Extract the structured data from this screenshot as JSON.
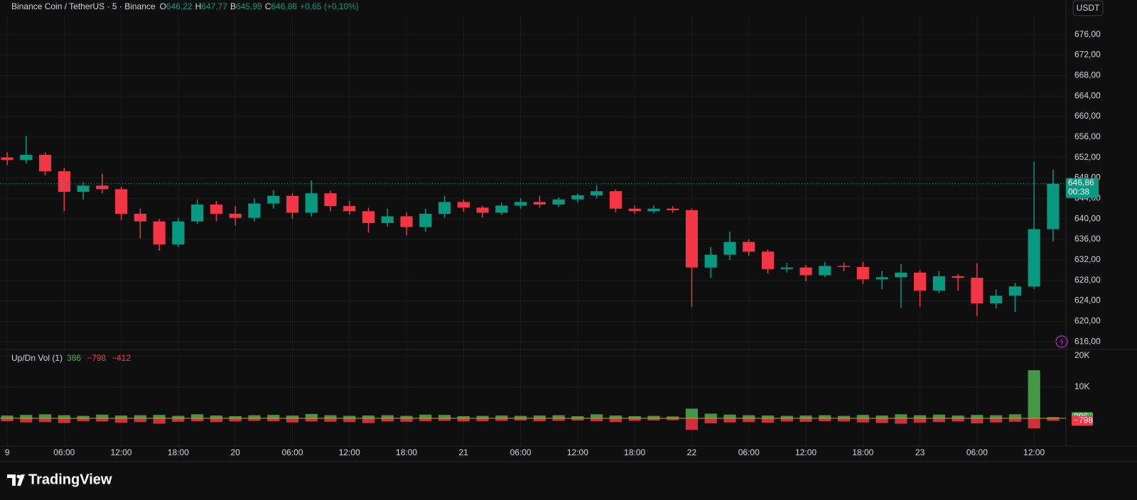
{
  "header": {
    "symbol": "Binance Coin / TetherUS · 5 · Binance",
    "ohlc": [
      {
        "key": "O",
        "value": "646,22"
      },
      {
        "key": "H",
        "value": "647,77"
      },
      {
        "key": "B",
        "value": "645,99"
      },
      {
        "key": "C",
        "value": "646,86"
      }
    ],
    "change": "+0,65 (+0,10%)",
    "currency": "USDT"
  },
  "footer": {
    "brand": "TradingView"
  },
  "chart_data": [
    {
      "type": "candlestick",
      "up_color": "#089981",
      "down_color": "#f23645",
      "grid": true,
      "x": [
        0,
        2,
        4,
        6,
        8,
        10,
        12,
        14,
        16,
        18,
        20,
        22,
        24,
        26,
        28,
        30,
        32,
        34,
        36,
        38,
        40,
        42,
        44,
        46,
        48,
        50,
        52,
        54,
        56,
        58,
        60,
        62,
        64,
        66,
        68,
        70,
        72,
        74,
        76,
        78,
        80,
        82,
        84,
        86,
        88,
        90,
        92,
        94,
        96,
        98,
        100,
        102,
        104,
        106,
        108,
        110
      ],
      "open": [
        652,
        651.5,
        652.5,
        649.3,
        645.3,
        646.5,
        645.8,
        641,
        639.5,
        635,
        639.5,
        642.8,
        641,
        640.2,
        643,
        644.5,
        641.2,
        645,
        642.5,
        641.5,
        639.2,
        640.5,
        638.4,
        641,
        643.3,
        642.2,
        641.2,
        642.6,
        643.3,
        642.8,
        643.8,
        644.6,
        645.4,
        642,
        641.5,
        642,
        641.7,
        630.5,
        633,
        635.5,
        633.6,
        630.2,
        630.5,
        629,
        630.8,
        630.6,
        628.2,
        628.6,
        629.5,
        626,
        628.8,
        628.5,
        623.5,
        625,
        626.8,
        638
      ],
      "high": [
        653,
        656.2,
        653,
        650,
        647.2,
        648.8,
        646.3,
        642,
        640,
        640.2,
        643.8,
        643.5,
        642.5,
        644,
        645.6,
        645,
        647.5,
        645.5,
        643.5,
        642.2,
        642,
        641.3,
        642,
        644.5,
        643.8,
        642.6,
        643.2,
        644,
        644.5,
        644.2,
        645,
        646.6,
        645.8,
        642.6,
        642.6,
        642.5,
        642,
        634.5,
        637.5,
        636,
        634,
        631.4,
        631,
        631.6,
        631.5,
        631.6,
        629.8,
        631.2,
        630,
        629.8,
        629.2,
        631.3,
        626.2,
        627.5,
        651.1,
        649.6
      ],
      "low": [
        650.5,
        650.8,
        648.5,
        641.5,
        643.8,
        645,
        639.8,
        636.2,
        633.8,
        634.5,
        639,
        639.5,
        638.7,
        639.5,
        642,
        640,
        640.5,
        641.5,
        640.8,
        637.3,
        638.5,
        636.8,
        637.5,
        640.2,
        641.4,
        640.3,
        640.8,
        642,
        642.2,
        642.3,
        643.2,
        644,
        641.3,
        640.9,
        641.1,
        641.2,
        622.8,
        628.5,
        632,
        632.8,
        629.3,
        629.5,
        627.8,
        628.6,
        629.8,
        627.3,
        626.3,
        622.7,
        622.8,
        625.5,
        626,
        621,
        622.5,
        621.8,
        626.3,
        635.6
      ],
      "close": [
        651.5,
        652.5,
        649.3,
        645.3,
        646.5,
        645.8,
        641,
        639.5,
        635,
        639.5,
        642.8,
        641,
        640.2,
        643,
        644.5,
        641.2,
        645,
        642.5,
        641.5,
        639.2,
        640.5,
        638.4,
        641,
        643.3,
        642.2,
        641.2,
        642.6,
        643.3,
        642.8,
        643.8,
        644.6,
        645.4,
        642,
        641.5,
        642,
        641.7,
        630.5,
        633,
        635.5,
        633.6,
        630.2,
        630.5,
        629,
        630.8,
        630.6,
        628.2,
        628.6,
        629.5,
        626,
        628.8,
        628.5,
        623.5,
        625,
        626.8,
        638,
        646.86
      ],
      "last_price": {
        "value": 646.86,
        "label": "646,86"
      },
      "countdown": "00:38",
      "xlim": [
        -0.75,
        111.35
      ],
      "ylim": [
        614.5,
        679.7
      ],
      "xticks": [
        {
          "value": 0,
          "label": "9"
        },
        {
          "value": 6,
          "label": "06:00"
        },
        {
          "value": 12,
          "label": "12:00"
        },
        {
          "value": 18,
          "label": "18:00"
        },
        {
          "value": 24,
          "label": "20"
        },
        {
          "value": 30,
          "label": "06:00"
        },
        {
          "value": 36,
          "label": "12:00"
        },
        {
          "value": 42,
          "label": "18:00"
        },
        {
          "value": 48,
          "label": "21"
        },
        {
          "value": 54,
          "label": "06:00"
        },
        {
          "value": 60,
          "label": "12:00"
        },
        {
          "value": 66,
          "label": "18:00"
        },
        {
          "value": 72,
          "label": "22"
        },
        {
          "value": 78,
          "label": "06:00"
        },
        {
          "value": 84,
          "label": "12:00"
        },
        {
          "value": 90,
          "label": "18:00"
        },
        {
          "value": 96,
          "label": "23"
        },
        {
          "value": 102,
          "label": "06:00"
        },
        {
          "value": 108,
          "label": "12:00"
        }
      ],
      "yticks": [
        {
          "value": 616,
          "label": "616,00"
        },
        {
          "value": 620,
          "label": "620,00"
        },
        {
          "value": 624,
          "label": "624,00"
        },
        {
          "value": 628,
          "label": "628,00"
        },
        {
          "value": 632,
          "label": "632,00"
        },
        {
          "value": 636,
          "label": "636,00"
        },
        {
          "value": 640,
          "label": "640,00"
        },
        {
          "value": 644,
          "label": "644,00"
        },
        {
          "value": 648,
          "label": "648,00"
        },
        {
          "value": 652,
          "label": "652,00"
        },
        {
          "value": 656,
          "label": "656,00"
        },
        {
          "value": 660,
          "label": "660,00"
        },
        {
          "value": 664,
          "label": "664,00"
        },
        {
          "value": 668,
          "label": "668,00"
        },
        {
          "value": 672,
          "label": "672,00"
        },
        {
          "value": 676,
          "label": "676,00"
        }
      ]
    },
    {
      "type": "bar",
      "title": "Up/Dn Vol (1)",
      "legend_values": [
        {
          "value": 386,
          "label": "386",
          "color": "#4caf50"
        },
        {
          "value": -798,
          "label": "−798",
          "color": "#f23645"
        },
        {
          "value": -412,
          "label": "−412",
          "color": "#f23645"
        }
      ],
      "x": [
        0,
        2,
        4,
        6,
        8,
        10,
        12,
        14,
        16,
        18,
        20,
        22,
        24,
        26,
        28,
        30,
        32,
        34,
        36,
        38,
        40,
        42,
        44,
        46,
        48,
        50,
        52,
        54,
        56,
        58,
        60,
        62,
        64,
        66,
        68,
        70,
        72,
        74,
        76,
        78,
        80,
        82,
        84,
        86,
        88,
        90,
        92,
        94,
        96,
        98,
        100,
        102,
        104,
        106,
        108,
        110
      ],
      "series": [
        {
          "color": "#4caf50",
          "values": [
            900,
            1100,
            1300,
            1000,
            800,
            1200,
            900,
            1000,
            1100,
            800,
            1300,
            900,
            700,
            1000,
            1100,
            900,
            1400,
            1000,
            800,
            900,
            1000,
            800,
            1200,
            1100,
            700,
            800,
            900,
            800,
            900,
            1000,
            700,
            1300,
            900,
            700,
            800,
            600,
            3100,
            1500,
            1200,
            1000,
            900,
            800,
            900,
            1000,
            800,
            1100,
            900,
            1300,
            1000,
            1200,
            900,
            1100,
            1000,
            1300,
            15400,
            386
          ]
        },
        {
          "color": "#f23645",
          "values": [
            -900,
            -1300,
            -1200,
            -1500,
            -900,
            -1000,
            -1400,
            -1200,
            -1700,
            -1100,
            -900,
            -1200,
            -1000,
            -800,
            -900,
            -1300,
            -1000,
            -1100,
            -1200,
            -1500,
            -1000,
            -1100,
            -900,
            -800,
            -1000,
            -900,
            -800,
            -700,
            -900,
            -800,
            -700,
            -900,
            -1200,
            -800,
            -700,
            -600,
            -3700,
            -1600,
            -1300,
            -1200,
            -1400,
            -1000,
            -1100,
            -900,
            -1000,
            -1300,
            -1500,
            -1700,
            -1400,
            -1200,
            -1000,
            -1600,
            -1300,
            -1100,
            -3200,
            -798
          ]
        }
      ],
      "last_labels": [
        {
          "value": 386,
          "label": "386"
        },
        {
          "value": -798,
          "label": "−798"
        }
      ],
      "ylim": [
        -8860,
        22050
      ],
      "yticks": [
        {
          "value": 10000,
          "label": "10K"
        },
        {
          "value": 20000,
          "label": "20K"
        }
      ]
    }
  ]
}
